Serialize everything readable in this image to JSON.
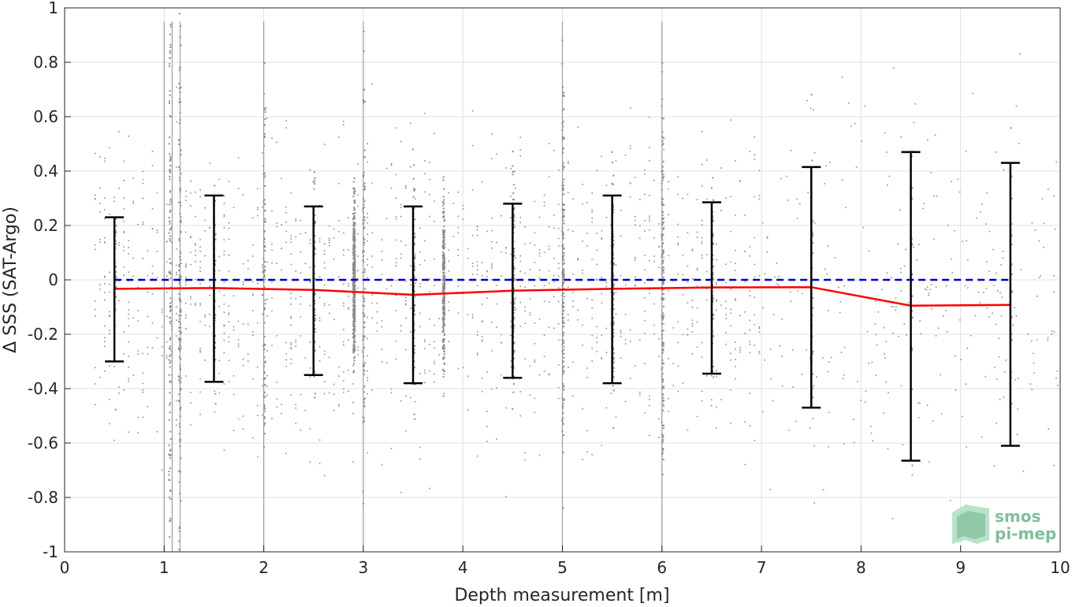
{
  "chart_data": {
    "type": "scatter",
    "title": "",
    "xlabel": "Depth measurement [m]",
    "ylabel": "Δ SSS (SAT-Argo)",
    "xlim": [
      0,
      10
    ],
    "ylim": [
      -1,
      1
    ],
    "x_ticks": [
      0,
      1,
      2,
      3,
      4,
      5,
      6,
      7,
      8,
      9,
      10
    ],
    "y_ticks": [
      -1,
      -0.8,
      -0.6,
      -0.4,
      -0.2,
      0,
      0.2,
      0.4,
      0.6,
      0.8,
      1
    ],
    "x_tick_labels": [
      "0",
      "1",
      "2",
      "3",
      "4",
      "5",
      "6",
      "7",
      "8",
      "9",
      "10"
    ],
    "y_tick_labels": [
      "-1",
      "-0.8",
      "-0.6",
      "-0.4",
      "-0.2",
      "0",
      "0.2",
      "0.4",
      "0.6",
      "0.8",
      "1"
    ],
    "grid": true,
    "colors": {
      "scatter": "#8c8c8c",
      "mean_line": "#ff0000",
      "zero_line": "#0000cc",
      "error_bars": "#000000",
      "grid": "#e0e0e0"
    },
    "zero_reference": {
      "y": 0,
      "style": "dashed",
      "x_range": [
        0.5,
        9.5
      ]
    },
    "series": [
      {
        "kind": "mean_with_std",
        "x": [
          0.5,
          1.5,
          2.5,
          2.95,
          3.5,
          4.5,
          5.5,
          6.5,
          7.5,
          8.5,
          9.5
        ],
        "mean": [
          -0.033,
          -0.03,
          -0.037,
          -0.045,
          -0.055,
          -0.04,
          -0.033,
          -0.028,
          -0.027,
          -0.095,
          -0.092
        ],
        "upper": [
          0.23,
          0.31,
          0.27,
          null,
          0.27,
          0.28,
          0.31,
          0.285,
          0.415,
          0.47,
          0.43
        ],
        "lower": [
          -0.3,
          -0.375,
          -0.35,
          null,
          -0.38,
          -0.36,
          -0.38,
          -0.345,
          -0.47,
          -0.665,
          -0.61
        ]
      },
      {
        "kind": "scatter_density",
        "columns": [
          {
            "x": 0.5,
            "spread": 0.18,
            "density": 40
          },
          {
            "x": 1.05,
            "spread": 0.6,
            "density": 120
          },
          {
            "x": 1.15,
            "spread": 0.6,
            "density": 140
          },
          {
            "x": 1.5,
            "spread": 0.2,
            "density": 40
          },
          {
            "x": 2.0,
            "spread": 0.35,
            "density": 90
          },
          {
            "x": 2.5,
            "spread": 0.2,
            "density": 50
          },
          {
            "x": 2.9,
            "spread": 0.15,
            "density": 400
          },
          {
            "x": 3.0,
            "spread": 0.4,
            "density": 80
          },
          {
            "x": 3.5,
            "spread": 0.2,
            "density": 80
          },
          {
            "x": 3.8,
            "spread": 0.14,
            "density": 300
          },
          {
            "x": 4.5,
            "spread": 0.2,
            "density": 120
          },
          {
            "x": 5.0,
            "spread": 0.35,
            "density": 150
          },
          {
            "x": 5.5,
            "spread": 0.2,
            "density": 90
          },
          {
            "x": 6.0,
            "spread": 0.35,
            "density": 140
          },
          {
            "x": 6.5,
            "spread": 0.18,
            "density": 60
          },
          {
            "x": 7.5,
            "spread": 0.25,
            "density": 30
          },
          {
            "x": 8.5,
            "spread": 0.3,
            "density": 25
          },
          {
            "x": 9.5,
            "spread": 0.3,
            "density": 25
          }
        ]
      }
    ]
  },
  "logo": {
    "line1": "smos",
    "line2": "pi-mep",
    "color": "#7fbf9a"
  }
}
